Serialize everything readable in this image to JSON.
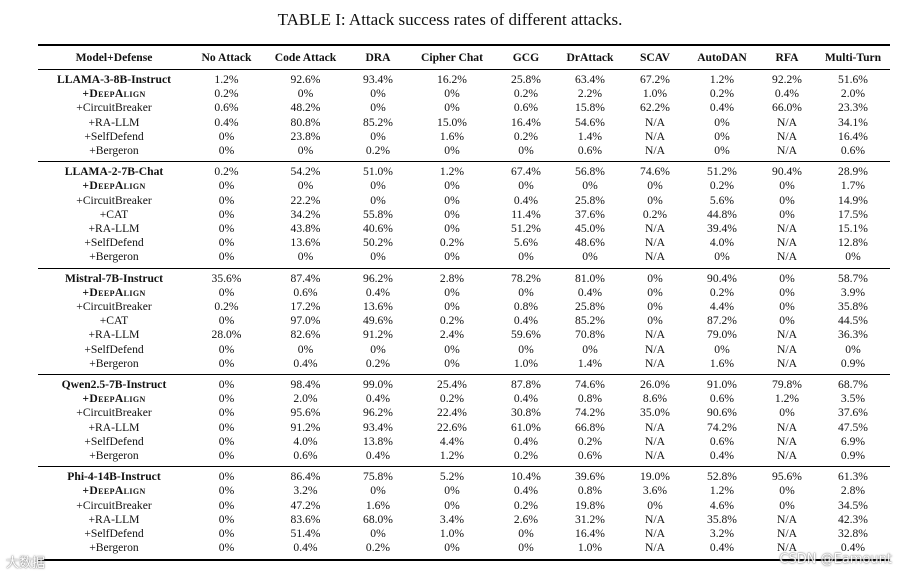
{
  "caption": "TABLE I: Attack success rates of different attacks.",
  "columns": [
    "Model+Defense",
    "No Attack",
    "Code Attack",
    "DRA",
    "Cipher Chat",
    "GCG",
    "DrAttack",
    "SCAV",
    "AutoDAN",
    "RFA",
    "Multi-Turn"
  ],
  "groups": [
    {
      "rows": [
        {
          "label": "LLAMA-3-8B-Instruct",
          "values": [
            "1.2%",
            "92.6%",
            "93.4%",
            "16.2%",
            "25.8%",
            "63.4%",
            "67.2%",
            "1.2%",
            "92.2%",
            "51.6%"
          ]
        },
        {
          "label": "+DeepAlign",
          "values": [
            "0.2%",
            "0%",
            "0%",
            "0%",
            "0.2%",
            "2.2%",
            "1.0%",
            "0.2%",
            "0.4%",
            "2.0%"
          ]
        },
        {
          "label": "+CircuitBreaker",
          "values": [
            "0.6%",
            "48.2%",
            "0%",
            "0%",
            "0.6%",
            "15.8%",
            "62.2%",
            "0.4%",
            "66.0%",
            "23.3%"
          ]
        },
        {
          "label": "+RA-LLM",
          "values": [
            "0.4%",
            "80.8%",
            "85.2%",
            "15.0%",
            "16.4%",
            "54.6%",
            "N/A",
            "0%",
            "N/A",
            "34.1%"
          ]
        },
        {
          "label": "+SelfDefend",
          "values": [
            "0%",
            "23.8%",
            "0%",
            "1.6%",
            "0.2%",
            "1.4%",
            "N/A",
            "0%",
            "N/A",
            "16.4%"
          ]
        },
        {
          "label": "+Bergeron",
          "values": [
            "0%",
            "0%",
            "0.2%",
            "0%",
            "0%",
            "0.6%",
            "N/A",
            "0%",
            "N/A",
            "0.6%"
          ]
        }
      ]
    },
    {
      "rows": [
        {
          "label": "LLAMA-2-7B-Chat",
          "values": [
            "0.2%",
            "54.2%",
            "51.0%",
            "1.2%",
            "67.4%",
            "56.8%",
            "74.6%",
            "51.2%",
            "90.4%",
            "28.9%"
          ]
        },
        {
          "label": "+DeepAlign",
          "values": [
            "0%",
            "0%",
            "0%",
            "0%",
            "0%",
            "0%",
            "0%",
            "0.2%",
            "0%",
            "1.7%"
          ]
        },
        {
          "label": "+CircuitBreaker",
          "values": [
            "0%",
            "22.2%",
            "0%",
            "0%",
            "0.4%",
            "25.8%",
            "0%",
            "5.6%",
            "0%",
            "14.9%"
          ]
        },
        {
          "label": "+CAT",
          "values": [
            "0%",
            "34.2%",
            "55.8%",
            "0%",
            "11.4%",
            "37.6%",
            "0.2%",
            "44.8%",
            "0%",
            "17.5%"
          ]
        },
        {
          "label": "+RA-LLM",
          "values": [
            "0%",
            "43.8%",
            "40.6%",
            "0%",
            "51.2%",
            "45.0%",
            "N/A",
            "39.4%",
            "N/A",
            "15.1%"
          ]
        },
        {
          "label": "+SelfDefend",
          "values": [
            "0%",
            "13.6%",
            "50.2%",
            "0.2%",
            "5.6%",
            "48.6%",
            "N/A",
            "4.0%",
            "N/A",
            "12.8%"
          ]
        },
        {
          "label": "+Bergeron",
          "values": [
            "0%",
            "0%",
            "0%",
            "0%",
            "0%",
            "0%",
            "N/A",
            "0%",
            "N/A",
            "0%"
          ]
        }
      ]
    },
    {
      "rows": [
        {
          "label": "Mistral-7B-Instruct",
          "values": [
            "35.6%",
            "87.4%",
            "96.2%",
            "2.8%",
            "78.2%",
            "81.0%",
            "0%",
            "90.4%",
            "0%",
            "58.7%"
          ]
        },
        {
          "label": "+DeepAlign",
          "values": [
            "0%",
            "0.6%",
            "0.4%",
            "0%",
            "0%",
            "0.4%",
            "0%",
            "0.2%",
            "0%",
            "3.9%"
          ]
        },
        {
          "label": "+CircuitBreaker",
          "values": [
            "0.2%",
            "17.2%",
            "13.6%",
            "0%",
            "0.8%",
            "25.8%",
            "0%",
            "4.4%",
            "0%",
            "35.8%"
          ]
        },
        {
          "label": "+CAT",
          "values": [
            "0%",
            "97.0%",
            "49.6%",
            "0.2%",
            "0.4%",
            "85.2%",
            "0%",
            "87.2%",
            "0%",
            "44.5%"
          ]
        },
        {
          "label": "+RA-LLM",
          "values": [
            "28.0%",
            "82.6%",
            "91.2%",
            "2.4%",
            "59.6%",
            "70.8%",
            "N/A",
            "79.0%",
            "N/A",
            "36.3%"
          ]
        },
        {
          "label": "+SelfDefend",
          "values": [
            "0%",
            "0%",
            "0%",
            "0%",
            "0%",
            "0%",
            "N/A",
            "0%",
            "N/A",
            "0%"
          ]
        },
        {
          "label": "+Bergeron",
          "values": [
            "0%",
            "0.4%",
            "0.2%",
            "0%",
            "1.0%",
            "1.4%",
            "N/A",
            "1.6%",
            "N/A",
            "0.9%"
          ]
        }
      ]
    },
    {
      "rows": [
        {
          "label": "Qwen2.5-7B-Instruct",
          "values": [
            "0%",
            "98.4%",
            "99.0%",
            "25.4%",
            "87.8%",
            "74.6%",
            "26.0%",
            "91.0%",
            "79.8%",
            "68.7%"
          ]
        },
        {
          "label": "+DeepAlign",
          "values": [
            "0%",
            "2.0%",
            "0.4%",
            "0.2%",
            "0.4%",
            "0.8%",
            "8.6%",
            "0.6%",
            "1.2%",
            "3.5%"
          ]
        },
        {
          "label": "+CircuitBreaker",
          "values": [
            "0%",
            "95.6%",
            "96.2%",
            "22.4%",
            "30.8%",
            "74.2%",
            "35.0%",
            "90.6%",
            "0%",
            "37.6%"
          ]
        },
        {
          "label": "+RA-LLM",
          "values": [
            "0%",
            "91.2%",
            "93.4%",
            "22.6%",
            "61.0%",
            "66.8%",
            "N/A",
            "74.2%",
            "N/A",
            "47.5%"
          ]
        },
        {
          "label": "+SelfDefend",
          "values": [
            "0%",
            "4.0%",
            "13.8%",
            "4.4%",
            "0.4%",
            "0.2%",
            "N/A",
            "0.6%",
            "N/A",
            "6.9%"
          ]
        },
        {
          "label": "+Bergeron",
          "values": [
            "0%",
            "0.6%",
            "0.4%",
            "1.2%",
            "0.2%",
            "0.6%",
            "N/A",
            "0.4%",
            "N/A",
            "0.9%"
          ]
        }
      ]
    },
    {
      "rows": [
        {
          "label": "Phi-4-14B-Instruct",
          "values": [
            "0%",
            "86.4%",
            "75.8%",
            "5.2%",
            "10.4%",
            "39.6%",
            "19.0%",
            "52.8%",
            "95.6%",
            "61.3%"
          ]
        },
        {
          "label": "+DeepAlign",
          "values": [
            "0%",
            "3.2%",
            "0%",
            "0%",
            "0.4%",
            "0.8%",
            "3.6%",
            "1.2%",
            "0%",
            "2.8%"
          ]
        },
        {
          "label": "+CircuitBreaker",
          "values": [
            "0%",
            "47.2%",
            "1.6%",
            "0%",
            "0.2%",
            "19.8%",
            "0%",
            "4.6%",
            "0%",
            "34.5%"
          ]
        },
        {
          "label": "+RA-LLM",
          "values": [
            "0%",
            "83.6%",
            "68.0%",
            "3.4%",
            "2.6%",
            "31.2%",
            "N/A",
            "35.8%",
            "N/A",
            "42.3%"
          ]
        },
        {
          "label": "+SelfDefend",
          "values": [
            "0%",
            "51.4%",
            "0%",
            "1.0%",
            "0%",
            "16.4%",
            "N/A",
            "3.2%",
            "N/A",
            "32.8%"
          ]
        },
        {
          "label": "+Bergeron",
          "values": [
            "0%",
            "0.4%",
            "0.2%",
            "0%",
            "0%",
            "1.0%",
            "N/A",
            "0.4%",
            "N/A",
            "0.4%"
          ]
        }
      ]
    }
  ],
  "watermark": {
    "left": "大数据",
    "right": "CSDN @Eamount"
  }
}
